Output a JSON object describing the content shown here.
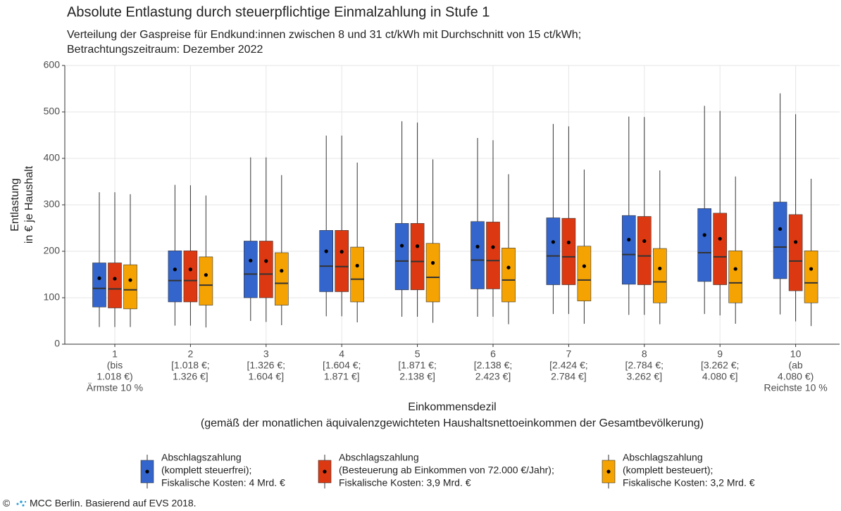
{
  "chart_data": {
    "type": "boxplot",
    "title": "Absolute Entlastung durch steuerpflichtige Einmalzahlung in Stufe 1",
    "subtitle": [
      "Verteilung der Gaspreise für Endkund:innen zwischen 8 und 31 ct/kWh mit Durchschnitt von 15 ct/kWh;",
      "Betrachtungszeitraum: Dezember 2022"
    ],
    "y_label": [
      "Entlastung",
      "in € je Haushalt"
    ],
    "x_label": [
      "Einkommensdezil",
      "(gemäß der monatlichen äquivalenzgewichteten Haushaltsnettoeinkommen der Gesamtbevölkerung)"
    ],
    "categories": [
      [
        "1",
        "(bis",
        "1.018 €)",
        "Ärmste 10 %"
      ],
      [
        "2",
        "[1.018 €;",
        "1.326 €]"
      ],
      [
        "3",
        "[1.326 €;",
        "1.604 €]"
      ],
      [
        "4",
        "[1.604 €;",
        "1.871 €]"
      ],
      [
        "5",
        "[1.871 €;",
        "2.138 €]"
      ],
      [
        "6",
        "[2.138 €;",
        "2.423 €]"
      ],
      [
        "7",
        "[2.424 €;",
        "2.784 €]"
      ],
      [
        "8",
        "[2.784 €;",
        "3.262 €]"
      ],
      [
        "9",
        "[3.262 €;",
        "4.080 €]"
      ],
      [
        "10",
        "(ab",
        "4.080 €)",
        "Reichste 10 %"
      ]
    ],
    "ylim": [
      0,
      600
    ],
    "yticks": [
      0,
      100,
      200,
      300,
      400,
      500,
      600
    ],
    "grid": true,
    "series": [
      {
        "name": [
          "Abschlagszahlung",
          "(komplett steuerfrei);",
          "Fiskalische Kosten: 4 Mrd. €"
        ],
        "color": "#3465cc",
        "whislo": [
          37,
          40,
          50,
          60,
          59,
          59,
          65,
          63,
          65,
          64
        ],
        "q1": [
          80,
          91,
          100,
          113,
          117,
          119,
          128,
          129,
          135,
          141
        ],
        "med": [
          120,
          137,
          151,
          168,
          179,
          181,
          190,
          193,
          197,
          209
        ],
        "q3": [
          175,
          201,
          222,
          245,
          260,
          264,
          272,
          277,
          292,
          306
        ],
        "whishi": [
          327,
          343,
          402,
          449,
          480,
          444,
          474,
          490,
          513,
          540
        ],
        "mean": [
          142,
          161,
          180,
          200,
          212,
          210,
          220,
          225,
          235,
          248
        ]
      },
      {
        "name": [
          "Abschlagszahlung",
          "(Besteuerung ab Einkommen von 72.000 €/Jahr);",
          "Fiskalische Kosten: 3,9 Mrd. €"
        ],
        "color": "#dc3912",
        "whislo": [
          37,
          40,
          48,
          60,
          59,
          59,
          65,
          63,
          62,
          49
        ],
        "q1": [
          78,
          91,
          100,
          113,
          117,
          119,
          128,
          128,
          128,
          115
        ],
        "med": [
          119,
          137,
          151,
          167,
          178,
          180,
          188,
          190,
          188,
          179
        ],
        "q3": [
          175,
          201,
          222,
          245,
          260,
          263,
          271,
          275,
          282,
          279
        ],
        "whishi": [
          327,
          342,
          402,
          449,
          477,
          439,
          469,
          489,
          502,
          495
        ],
        "mean": [
          141,
          161,
          179,
          199,
          211,
          209,
          219,
          222,
          227,
          220
        ]
      },
      {
        "name": [
          "Abschlagszahlung",
          "(komplett besteuert);",
          "Fiskalische Kosten: 3,2 Mrd. €"
        ],
        "color": "#f5a302",
        "whislo": [
          37,
          36,
          41,
          47,
          46,
          43,
          44,
          43,
          44,
          39
        ],
        "q1": [
          76,
          84,
          84,
          91,
          91,
          91,
          93,
          89,
          89,
          89
        ],
        "med": [
          117,
          127,
          131,
          140,
          144,
          138,
          138,
          134,
          132,
          132
        ],
        "q3": [
          171,
          188,
          197,
          209,
          217,
          207,
          211,
          206,
          201,
          201
        ],
        "whishi": [
          323,
          320,
          364,
          391,
          398,
          366,
          376,
          374,
          361,
          356
        ],
        "mean": [
          138,
          149,
          158,
          169,
          175,
          165,
          168,
          163,
          162,
          162
        ]
      }
    ],
    "credit": [
      "©",
      "MCC Berlin. Basierend auf EVS 2018."
    ]
  }
}
